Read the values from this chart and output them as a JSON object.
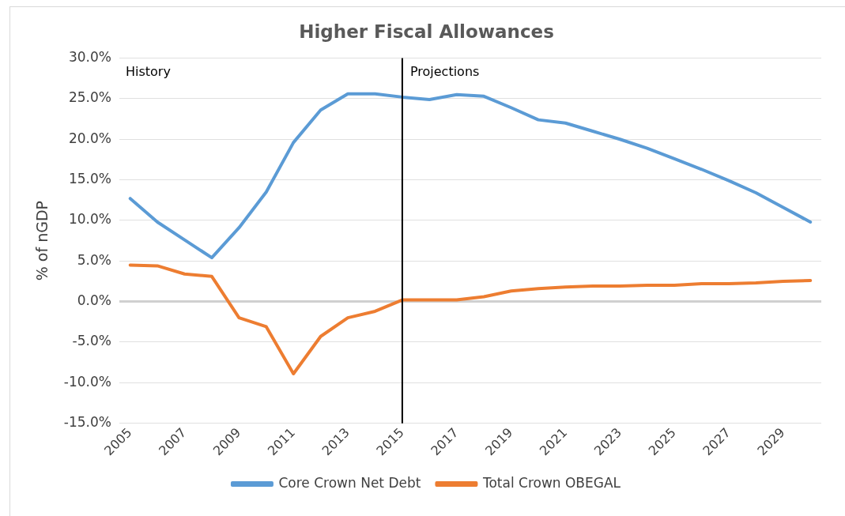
{
  "chart_data": {
    "type": "line",
    "title": "Higher Fiscal Allowances",
    "ylabel": "% of nGDP",
    "x": [
      2005,
      2006,
      2007,
      2008,
      2009,
      2010,
      2011,
      2012,
      2013,
      2014,
      2015,
      2016,
      2017,
      2018,
      2019,
      2020,
      2021,
      2022,
      2023,
      2024,
      2025,
      2026,
      2027,
      2028,
      2029,
      2030
    ],
    "series": [
      {
        "name": "Core Crown Net Debt",
        "color": "#5b9bd5",
        "values": [
          12.7,
          9.8,
          7.6,
          5.4,
          9.1,
          13.5,
          19.6,
          23.6,
          25.6,
          25.6,
          25.2,
          24.9,
          25.5,
          25.3,
          23.9,
          22.4,
          22.0,
          21.0,
          20.0,
          18.9,
          17.6,
          16.3,
          14.9,
          13.4,
          11.6,
          9.8
        ]
      },
      {
        "name": "Total Crown OBEGAL",
        "color": "#ed7d31",
        "values": [
          4.5,
          4.4,
          3.4,
          3.1,
          -2.0,
          -3.1,
          -8.9,
          -4.3,
          -2.0,
          -1.2,
          0.2,
          0.2,
          0.2,
          0.6,
          1.3,
          1.6,
          1.8,
          1.9,
          1.9,
          2.0,
          2.0,
          2.2,
          2.2,
          2.3,
          2.5,
          2.6
        ]
      }
    ],
    "xlim": [
      2004.6,
      2030.4
    ],
    "xticks": [
      2005,
      2007,
      2009,
      2011,
      2013,
      2015,
      2017,
      2019,
      2021,
      2023,
      2025,
      2027,
      2029
    ],
    "ylim": [
      -15,
      30
    ],
    "yticks": [
      {
        "value": -15,
        "label": "-15.0%"
      },
      {
        "value": -10,
        "label": "-10.0%"
      },
      {
        "value": -5,
        "label": "-5.0%"
      },
      {
        "value": 0,
        "label": "0.0%"
      },
      {
        "value": 5,
        "label": "5.0%"
      },
      {
        "value": 10,
        "label": "10.0%"
      },
      {
        "value": 15,
        "label": "15.0%"
      },
      {
        "value": 20,
        "label": "20.0%"
      },
      {
        "value": 25,
        "label": "25.0%"
      },
      {
        "value": 30,
        "label": "30.0%"
      }
    ],
    "ref_lines": [
      {
        "axis": "x",
        "value": 2015,
        "color": "#000000"
      }
    ],
    "annotations": [
      "History",
      "Projections"
    ],
    "grid": "y",
    "legend": "bottom",
    "marker": "none",
    "line_style": "solid"
  }
}
